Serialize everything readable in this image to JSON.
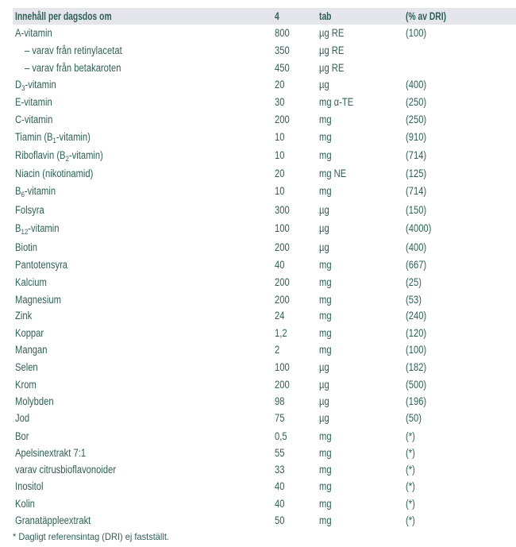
{
  "colors": {
    "text_green": "#2f6054",
    "header_bg": "#e4e6eb",
    "page_bg": "#ffffff"
  },
  "table": {
    "header": {
      "name": "Innehåll per dagsdos om",
      "value": "4",
      "unit": "tab",
      "dri": "(% av DRI)"
    },
    "rows": [
      {
        "name": "A-vitamin",
        "value": "800",
        "unit": "µg RE",
        "dri": "(100)",
        "indent": false
      },
      {
        "name": "– varav från retinylacetat",
        "value": "350",
        "unit": "µg RE",
        "dri": "",
        "indent": true
      },
      {
        "name": "– varav från betakaroten",
        "value": "450",
        "unit": "µg RE",
        "dri": "",
        "indent": true
      },
      {
        "name": "D3-vitamin",
        "value": "20",
        "unit": "µg",
        "dri": "(400)",
        "indent": false
      },
      {
        "name": "E-vitamin",
        "value": "30",
        "unit": "mg α-TE",
        "dri": "(250)",
        "indent": false
      },
      {
        "name": "C-vitamin",
        "value": "200",
        "unit": "mg",
        "dri": "(250)",
        "indent": false
      },
      {
        "name": "Tiamin (B1-vitamin)",
        "value": "10",
        "unit": "mg",
        "dri": "(910)",
        "indent": false
      },
      {
        "name": "Riboflavin (B2-vitamin)",
        "value": "10",
        "unit": "mg",
        "dri": "(714)",
        "indent": false
      },
      {
        "name": "Niacin (nikotinamid)",
        "value": "20",
        "unit": "mg NE",
        "dri": "(125)",
        "indent": false
      },
      {
        "name": "B6-vitamin",
        "value": "10",
        "unit": "mg",
        "dri": "(714)",
        "indent": false
      },
      {
        "name": "Folsyra",
        "value": "300",
        "unit": "µg",
        "dri": "(150)",
        "indent": false
      },
      {
        "name": "B12-vitamin",
        "value": "100",
        "unit": "µg",
        "dri": "(4000)",
        "indent": false
      },
      {
        "name": "Biotin",
        "value": "200",
        "unit": "µg",
        "dri": "(400)",
        "indent": false
      },
      {
        "name": "Pantotensyra",
        "value": "40",
        "unit": "mg",
        "dri": "(667)",
        "indent": false
      },
      {
        "name": "Kalcium",
        "value": "200",
        "unit": "mg",
        "dri": "(25)",
        "indent": false
      },
      {
        "name": "Magnesium",
        "value": "200",
        "unit": "mg",
        "dri": "(53)",
        "indent": false
      },
      {
        "name": "Zink",
        "value": "24",
        "unit": "mg",
        "dri": "(240)",
        "indent": false
      },
      {
        "name": "Koppar",
        "value": "1,2",
        "unit": "mg",
        "dri": "(120)",
        "indent": false
      },
      {
        "name": "Mangan",
        "value": "2",
        "unit": "mg",
        "dri": "(100)",
        "indent": false
      },
      {
        "name": "Selen",
        "value": "100",
        "unit": "µg",
        "dri": "(182)",
        "indent": false
      },
      {
        "name": "Krom",
        "value": "200",
        "unit": "µg",
        "dri": "(500)",
        "indent": false
      },
      {
        "name": "Molybden",
        "value": "98",
        "unit": "µg",
        "dri": "(196)",
        "indent": false
      },
      {
        "name": "Jod",
        "value": "75",
        "unit": "µg",
        "dri": "(50)",
        "indent": false
      },
      {
        "name": "Bor",
        "value": "0,5",
        "unit": "mg",
        "dri": "(*)",
        "indent": false
      },
      {
        "name": "Apelsinextrakt 7:1",
        "value": "55",
        "unit": "mg",
        "dri": "(*)",
        "indent": false
      },
      {
        "name": "varav citrusbioflavonoider",
        "value": "33",
        "unit": "mg",
        "dri": "(*)",
        "indent": false
      },
      {
        "name": "Inositol",
        "value": "40",
        "unit": "mg",
        "dri": "(*)",
        "indent": false
      },
      {
        "name": "Kolin",
        "value": "40",
        "unit": "mg",
        "dri": "(*)",
        "indent": false
      },
      {
        "name": "Granatäppleextrakt",
        "value": "50",
        "unit": "mg",
        "dri": "(*)",
        "indent": false
      }
    ],
    "footnote": "* Dagligt referensintag (DRI) ej fastställt."
  }
}
